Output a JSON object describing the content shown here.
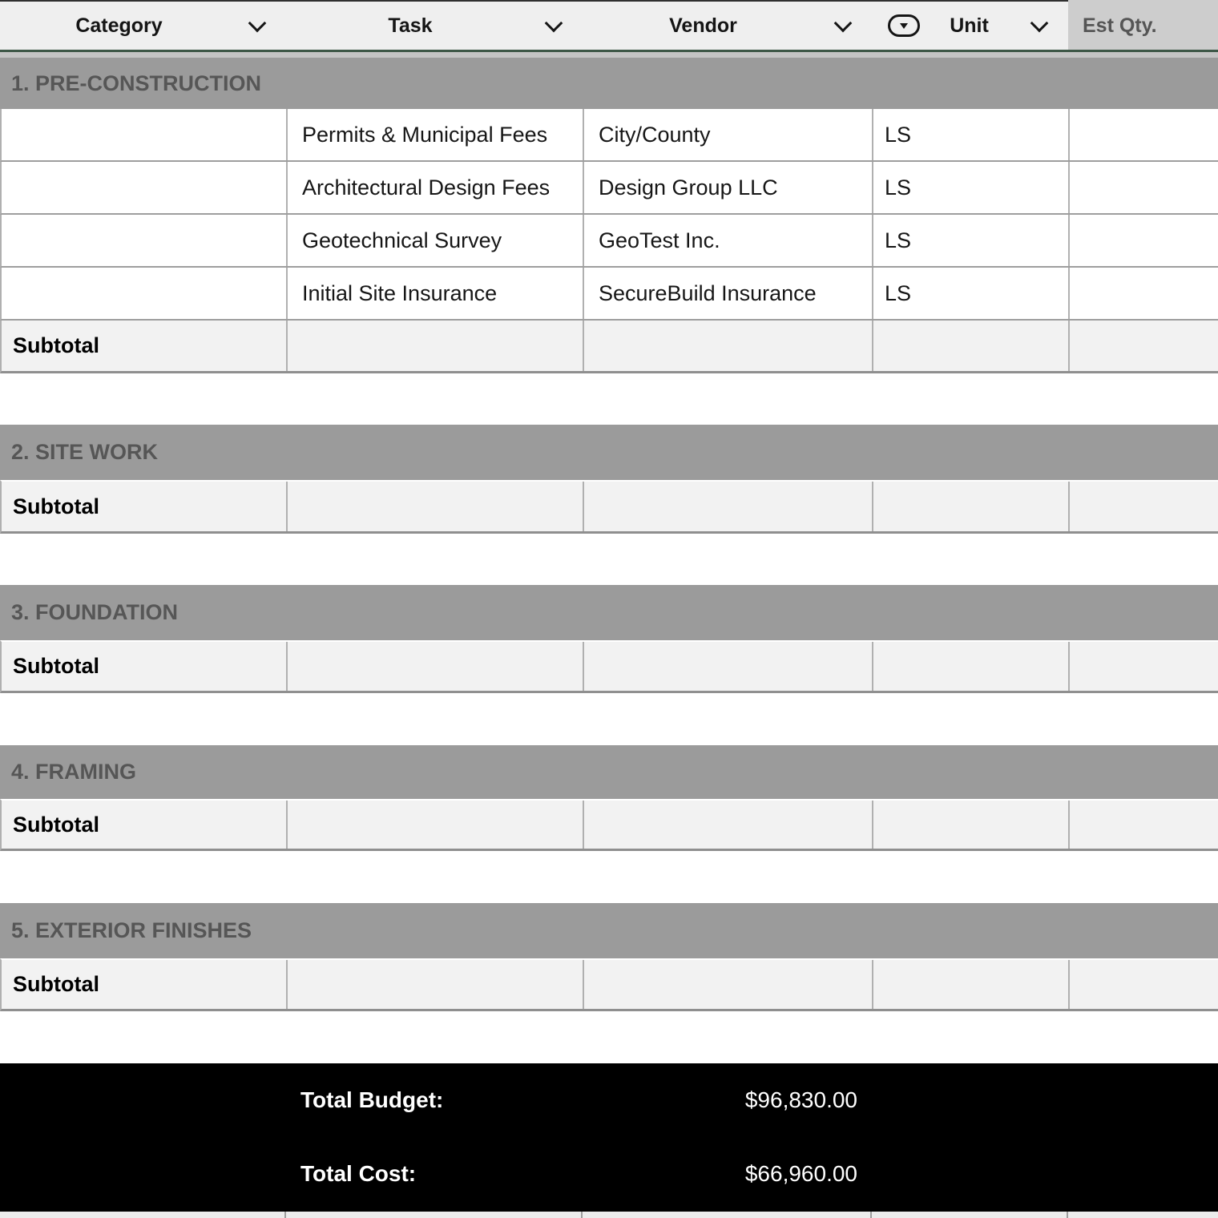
{
  "columns": [
    {
      "id": "category",
      "label": "Category",
      "chevron": true
    },
    {
      "id": "task",
      "label": "Task",
      "chevron": true
    },
    {
      "id": "vendor",
      "label": "Vendor",
      "chevron": true
    },
    {
      "id": "unit",
      "label": "Unit",
      "chevron": true,
      "popup_icon": true
    },
    {
      "id": "est_qty",
      "label": "Est Qty.",
      "chevron": false
    }
  ],
  "sections": [
    {
      "title": "1. PRE-CONSTRUCTION",
      "rows": [
        {
          "category": "",
          "task": "Permits & Municipal Fees",
          "vendor": "City/County",
          "unit": "LS",
          "est_qty": ""
        },
        {
          "category": "",
          "task": "Architectural Design Fees",
          "vendor": "Design Group LLC",
          "unit": "LS",
          "est_qty": ""
        },
        {
          "category": "",
          "task": "Geotechnical Survey",
          "vendor": "GeoTest Inc.",
          "unit": "LS",
          "est_qty": ""
        },
        {
          "category": "",
          "task": "Initial Site Insurance",
          "vendor": "SecureBuild Insurance",
          "unit": "LS",
          "est_qty": ""
        }
      ],
      "subtotal_label": "Subtotal"
    },
    {
      "title": "2. SITE WORK",
      "rows": [],
      "subtotal_label": "Subtotal"
    },
    {
      "title": "3. FOUNDATION",
      "rows": [],
      "subtotal_label": "Subtotal"
    },
    {
      "title": "4. FRAMING",
      "rows": [],
      "subtotal_label": "Subtotal"
    },
    {
      "title": "5. EXTERIOR FINISHES",
      "rows": [],
      "subtotal_label": "Subtotal"
    }
  ],
  "footer": {
    "total_budget_label": "Total Budget:",
    "total_budget_value": "$96,830.00",
    "total_cost_label": "Total Cost:",
    "total_cost_value": "$66,960.00"
  },
  "icons": {
    "chevron_down": "chevron-down-icon",
    "popup_menu": "popup-menu-icon"
  },
  "colors": {
    "header_bg": "#efefef",
    "header_lastcol_bg": "#cdcdcd",
    "header_underline_green": "#3d5747",
    "section_header_bg": "#9b9b9b",
    "section_header_text": "#565656",
    "subtotal_bg": "#f2f2f2",
    "grid_border": "#b0b0b0",
    "footer_bg": "#000000",
    "footer_text": "#ffffff"
  }
}
